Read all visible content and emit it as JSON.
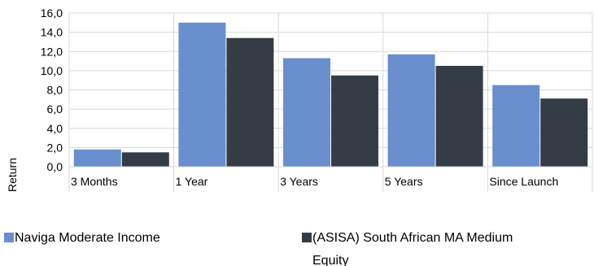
{
  "chart_data": {
    "type": "bar",
    "title": "",
    "xlabel": "",
    "ylabel": "Return",
    "ylim": [
      0,
      16
    ],
    "y_ticks": [
      "0,0",
      "2,0",
      "4,0",
      "6,0",
      "8,0",
      "10,0",
      "12,0",
      "14,0",
      "16,0"
    ],
    "categories": [
      "3 Months",
      "1 Year",
      "3 Years",
      "5 Years",
      "Since Launch"
    ],
    "series": [
      {
        "name": "Naviga Moderate Income",
        "color": "#6a8fcf",
        "values": [
          1.8,
          15.0,
          11.3,
          11.7,
          8.5
        ]
      },
      {
        "name": "(ASISA) South African MA Medium Equity",
        "legend_lines": [
          "(ASISA) South African MA Medium",
          "Equity"
        ],
        "color": "#343d46",
        "values": [
          1.5,
          13.4,
          9.5,
          10.5,
          7.1
        ]
      }
    ],
    "grid": true,
    "legend": "bottom"
  }
}
